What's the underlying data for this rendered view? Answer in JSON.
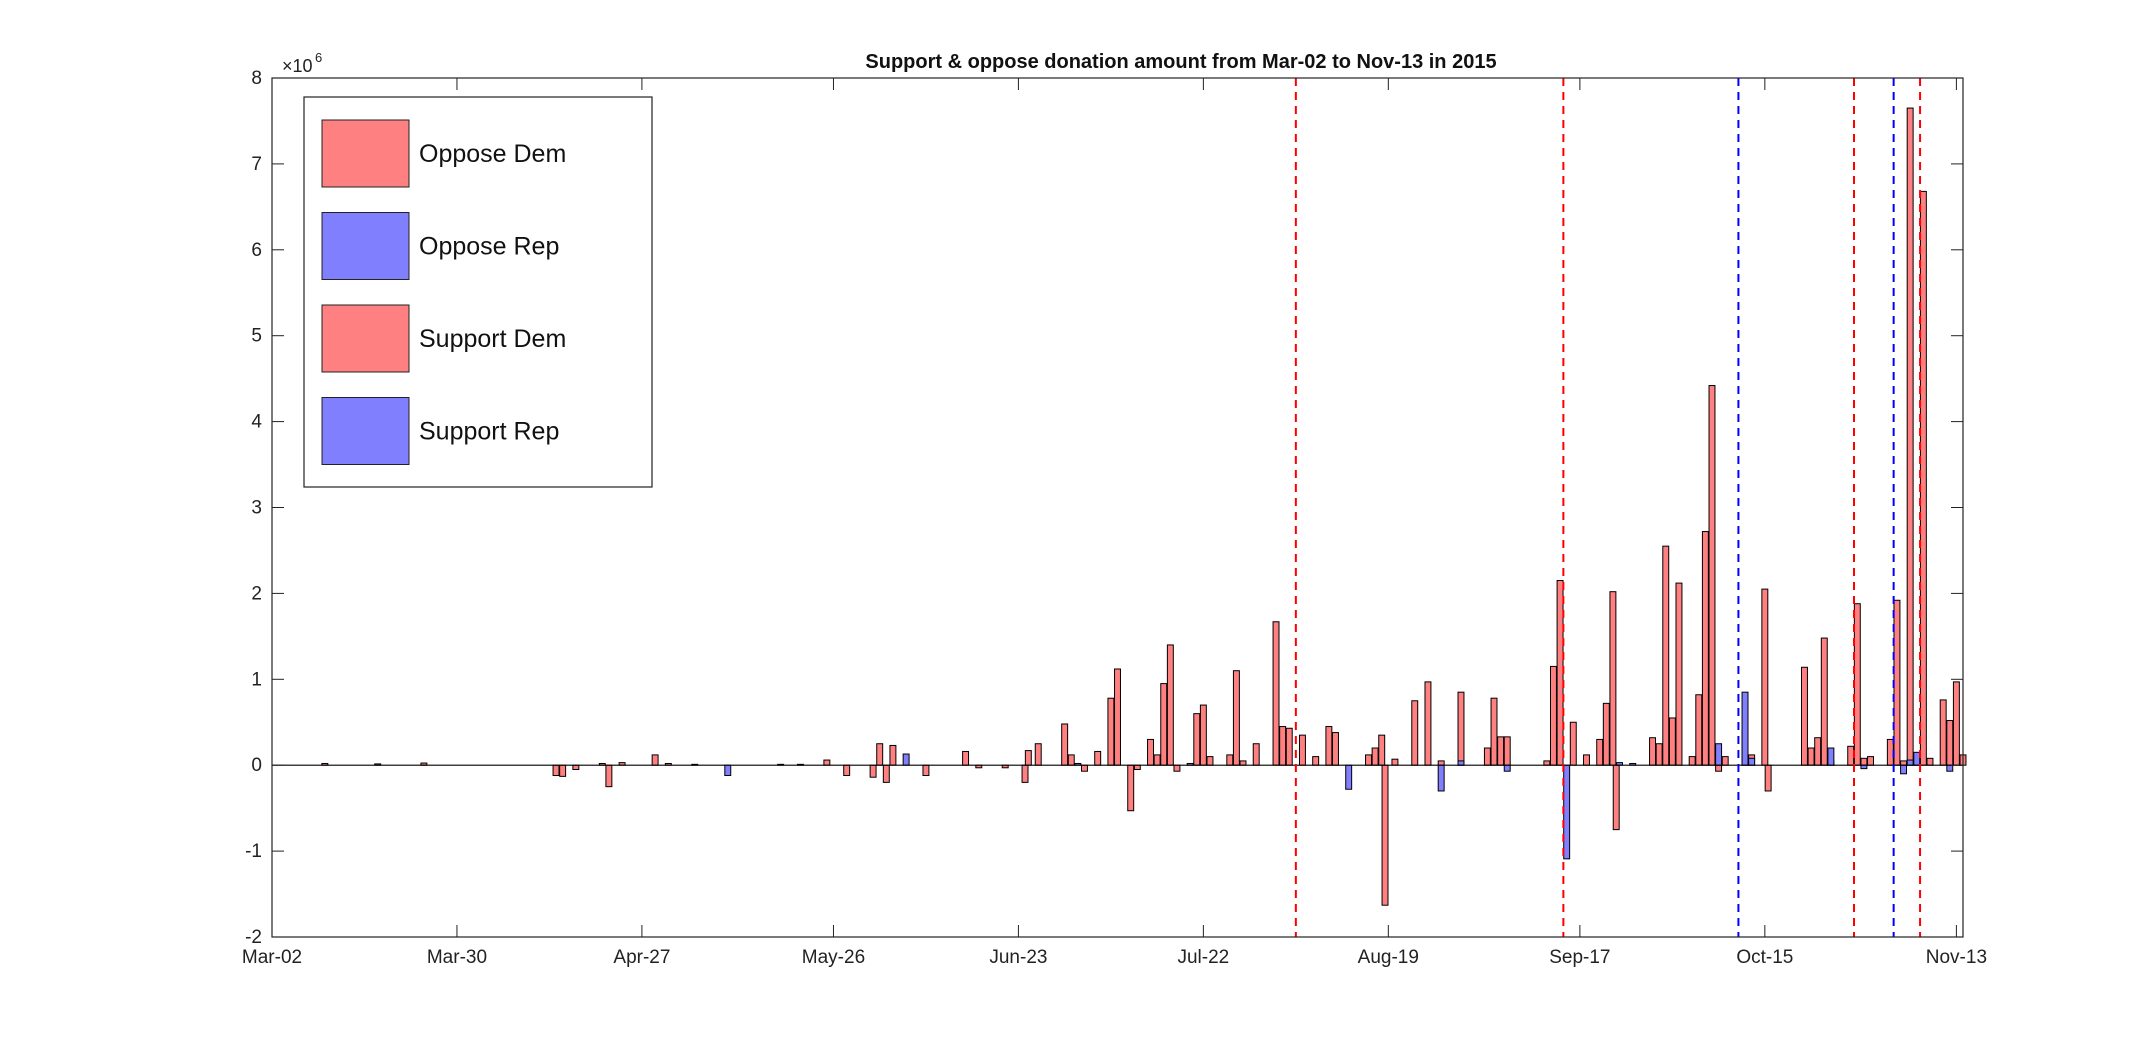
{
  "chart_data": {
    "type": "bar",
    "title": "Support & oppose donation amount from Mar-02 to Nov-13 in 2015",
    "xlabel": "",
    "ylabel": "",
    "y_multiplier_base": "×10",
    "y_multiplier_exp": "6",
    "ylim": [
      -2,
      8
    ],
    "yticks": [
      "-2",
      "-1",
      "0",
      "1",
      "2",
      "3",
      "4",
      "5",
      "6",
      "7",
      "8"
    ],
    "xlim_days": [
      0,
      256
    ],
    "xticks": [
      {
        "day": 0,
        "label": "Mar-02"
      },
      {
        "day": 28,
        "label": "Mar-30"
      },
      {
        "day": 56,
        "label": "Apr-27"
      },
      {
        "day": 85,
        "label": "May-26"
      },
      {
        "day": 113,
        "label": "Jun-23"
      },
      {
        "day": 141,
        "label": "Jul-22"
      },
      {
        "day": 169,
        "label": "Aug-19"
      },
      {
        "day": 198,
        "label": "Sep-17"
      },
      {
        "day": 226,
        "label": "Oct-15"
      },
      {
        "day": 255,
        "label": "Nov-13"
      }
    ],
    "legend_position": "top-left",
    "series": [
      {
        "name": "Oppose Dem",
        "color": "#ff8080"
      },
      {
        "name": "Oppose Rep",
        "color": "#8080ff"
      },
      {
        "name": "Support Dem",
        "color": "#ff8080"
      },
      {
        "name": "Support Rep",
        "color": "#8080ff"
      }
    ],
    "bars_red": [
      [
        8,
        0.02
      ],
      [
        16,
        0.015
      ],
      [
        23,
        0.025
      ],
      [
        43,
        -0.12
      ],
      [
        44,
        -0.13
      ],
      [
        46,
        -0.05
      ],
      [
        50,
        0.02
      ],
      [
        51,
        -0.25
      ],
      [
        53,
        0.03
      ],
      [
        58,
        0.12
      ],
      [
        60,
        0.02
      ],
      [
        64,
        0.01
      ],
      [
        80,
        0.01
      ],
      [
        84,
        0.06
      ],
      [
        87,
        -0.12
      ],
      [
        91,
        -0.14
      ],
      [
        92,
        0.25
      ],
      [
        93,
        -0.2
      ],
      [
        94,
        0.23
      ],
      [
        99,
        -0.12
      ],
      [
        105,
        0.16
      ],
      [
        107,
        -0.03
      ],
      [
        111,
        -0.03
      ],
      [
        114,
        -0.2
      ],
      [
        114.5,
        0.17
      ],
      [
        116,
        0.25
      ],
      [
        120,
        0.48
      ],
      [
        121,
        0.12
      ],
      [
        123,
        -0.07
      ],
      [
        125,
        0.16
      ],
      [
        127,
        0.78
      ],
      [
        128,
        1.12
      ],
      [
        130,
        -0.53
      ],
      [
        131,
        -0.05
      ],
      [
        133,
        0.3
      ],
      [
        134,
        0.12
      ],
      [
        135,
        0.95
      ],
      [
        136,
        1.4
      ],
      [
        137,
        -0.07
      ],
      [
        140,
        0.6
      ],
      [
        141,
        0.7
      ],
      [
        142,
        0.1
      ],
      [
        145,
        0.12
      ],
      [
        146,
        1.1
      ],
      [
        147,
        0.05
      ],
      [
        149,
        0.25
      ],
      [
        152,
        1.67
      ],
      [
        153,
        0.45
      ],
      [
        154,
        0.43
      ],
      [
        156,
        0.35
      ],
      [
        158,
        0.1
      ],
      [
        160,
        0.45
      ],
      [
        161,
        0.38
      ],
      [
        166,
        0.12
      ],
      [
        167,
        0.2
      ],
      [
        168,
        0.35
      ],
      [
        168.5,
        -1.63
      ],
      [
        170,
        0.07
      ],
      [
        173,
        0.75
      ],
      [
        175,
        0.97
      ],
      [
        177,
        0.05
      ],
      [
        180,
        0.85
      ],
      [
        184,
        0.2
      ],
      [
        185,
        0.78
      ],
      [
        186,
        0.33
      ],
      [
        187,
        0.33
      ],
      [
        193,
        0.05
      ],
      [
        194,
        1.15
      ],
      [
        195,
        2.15
      ],
      [
        197,
        0.5
      ],
      [
        199,
        0.12
      ],
      [
        201,
        0.3
      ],
      [
        202,
        0.72
      ],
      [
        203,
        2.02
      ],
      [
        203.5,
        -0.75
      ],
      [
        209,
        0.32
      ],
      [
        210,
        0.25
      ],
      [
        211,
        2.55
      ],
      [
        212,
        0.55
      ],
      [
        213,
        2.12
      ],
      [
        215,
        0.1
      ],
      [
        216,
        0.82
      ],
      [
        217,
        2.72
      ],
      [
        218,
        4.42
      ],
      [
        219,
        -0.07
      ],
      [
        220,
        0.1
      ],
      [
        223,
        0.4
      ],
      [
        224,
        0.12
      ],
      [
        226,
        2.05
      ],
      [
        226.5,
        -0.3
      ],
      [
        232,
        1.14
      ],
      [
        233,
        0.2
      ],
      [
        234,
        0.32
      ],
      [
        235,
        1.48
      ],
      [
        236,
        0.05
      ],
      [
        239,
        0.22
      ],
      [
        240,
        1.88
      ],
      [
        241,
        0.08
      ],
      [
        242,
        0.1
      ],
      [
        245,
        0.3
      ],
      [
        246,
        1.92
      ],
      [
        247,
        0.05
      ],
      [
        248,
        7.65
      ],
      [
        249,
        0.1
      ],
      [
        250,
        6.68
      ],
      [
        251,
        0.08
      ],
      [
        253,
        0.76
      ],
      [
        254,
        0.52
      ],
      [
        255,
        0.97
      ],
      [
        256,
        0.12
      ]
    ],
    "bars_blue": [
      [
        69,
        -0.12
      ],
      [
        77,
        0.01
      ],
      [
        96,
        0.13
      ],
      [
        122,
        0.02
      ],
      [
        139,
        0.02
      ],
      [
        163,
        -0.28
      ],
      [
        177,
        -0.3
      ],
      [
        180,
        0.05
      ],
      [
        187,
        -0.07
      ],
      [
        196,
        -1.09
      ],
      [
        204,
        0.03
      ],
      [
        206,
        0.02
      ],
      [
        219,
        0.25
      ],
      [
        223,
        0.85
      ],
      [
        224,
        0.08
      ],
      [
        236,
        0.2
      ],
      [
        241,
        -0.04
      ],
      [
        247,
        -0.1
      ],
      [
        248,
        0.06
      ],
      [
        249,
        0.15
      ],
      [
        254,
        -0.07
      ]
    ],
    "vlines": [
      {
        "day": 155,
        "color": "#ff0000"
      },
      {
        "day": 195.5,
        "color": "#ff0000"
      },
      {
        "day": 222,
        "color": "#0000ff"
      },
      {
        "day": 239.5,
        "color": "#ff0000"
      },
      {
        "day": 245.5,
        "color": "#0000ff"
      },
      {
        "day": 249.5,
        "color": "#ff0000"
      }
    ]
  }
}
